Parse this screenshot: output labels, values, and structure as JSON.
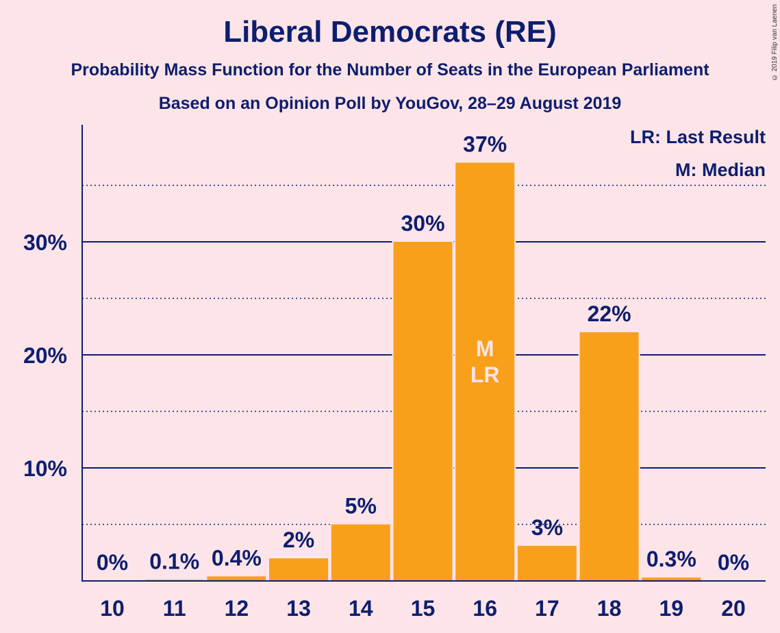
{
  "header": {
    "title": "Liberal Democrats (RE)",
    "subtitle1": "Probability Mass Function for the Number of Seats in the European Parliament",
    "subtitle2": "Based on an Opinion Poll by YouGov, 28–29 August 2019",
    "copyright": "© 2019 Filip van Laenen"
  },
  "legend": {
    "last_result": "LR: Last Result",
    "median": "M: Median"
  },
  "colors": {
    "bar": "#f9a01b",
    "text": "#0d1e6e",
    "background": "#fde4e8"
  },
  "chart_data": {
    "type": "bar",
    "categories": [
      "10",
      "11",
      "12",
      "13",
      "14",
      "15",
      "16",
      "17",
      "18",
      "19",
      "20"
    ],
    "values": [
      0,
      0.1,
      0.4,
      2,
      5,
      30,
      37,
      3.1,
      22,
      0.3,
      0
    ],
    "data_labels": [
      "0%",
      "0.1%",
      "0.4%",
      "2%",
      "5%",
      "30%",
      "37%",
      "3%",
      "22%",
      "0.3%",
      "0%"
    ],
    "yticks": [
      10,
      20,
      30
    ],
    "ytick_labels": [
      "10%",
      "20%",
      "30%"
    ],
    "minor_gridlines": [
      5,
      15,
      25,
      35
    ],
    "ylim": [
      0,
      40
    ],
    "median_category": "16",
    "last_result_category": "16",
    "median_marker": "M",
    "last_result_marker": "LR",
    "legend_position": "top-right"
  }
}
